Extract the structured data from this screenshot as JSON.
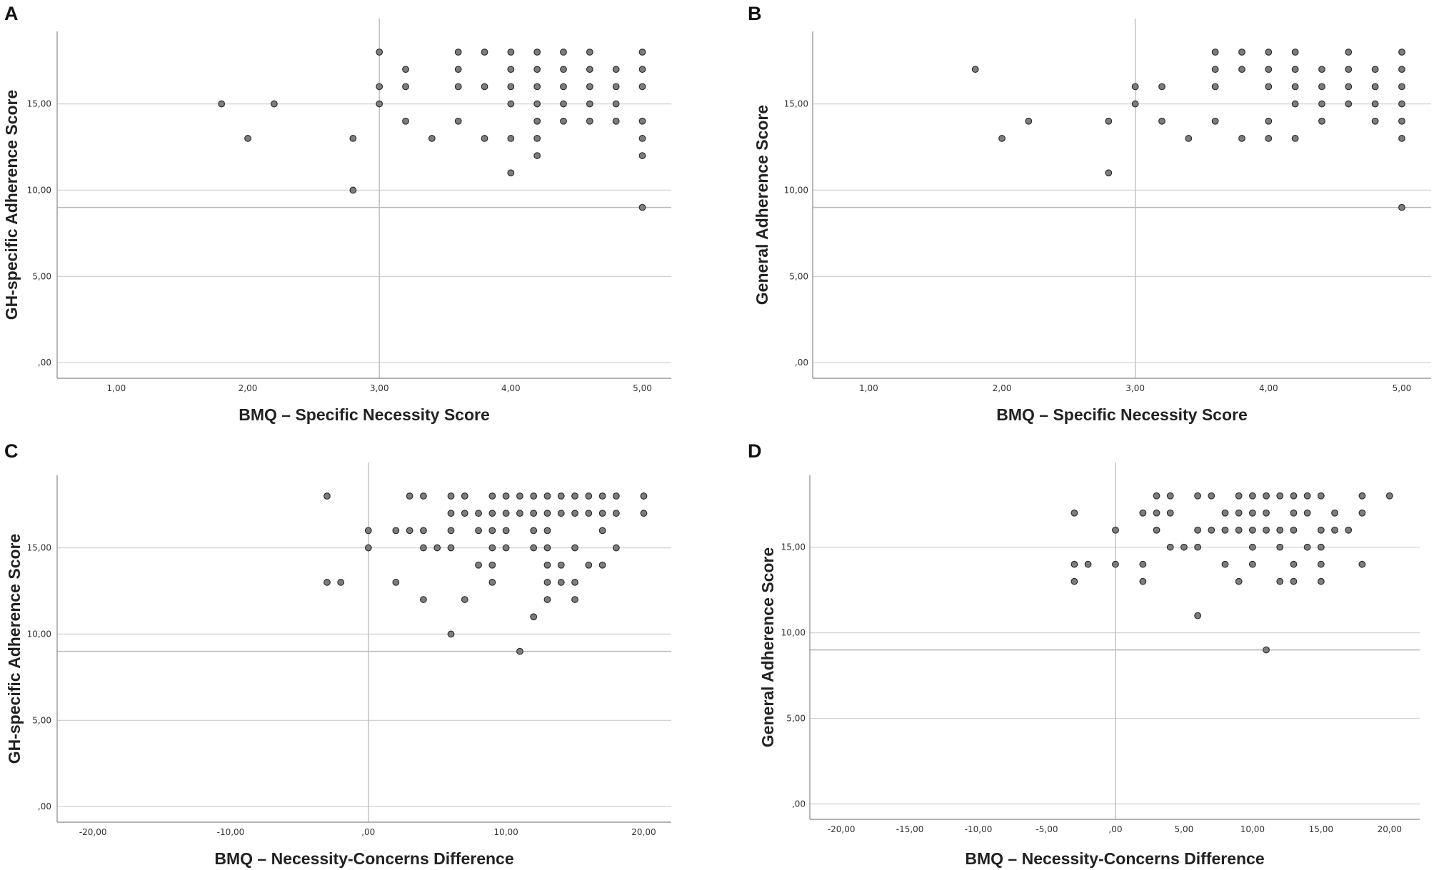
{
  "chart_data": [
    {
      "type": "scatter",
      "panel": "A",
      "xlabel": "BMQ – Specific Necessity Score",
      "ylabel": "GH-specific Adherence Score",
      "xlim": [
        0.55,
        5.22
      ],
      "ylim": [
        -0.9,
        19.2
      ],
      "xticks": [
        1,
        2,
        3,
        4,
        5
      ],
      "xtick_labels": [
        "1,00",
        "2,00",
        "3,00",
        "4,00",
        "5,00"
      ],
      "yticks": [
        0,
        5,
        10,
        15
      ],
      "ytick_labels": [
        ",00",
        "5,00",
        "10,00",
        "15,00"
      ],
      "gridlines_y": [
        0,
        5,
        9,
        10,
        15
      ],
      "ref_x": 3,
      "points": [
        [
          1.8,
          15
        ],
        [
          2.0,
          13
        ],
        [
          2.2,
          15
        ],
        [
          2.8,
          13
        ],
        [
          2.8,
          10
        ],
        [
          3.0,
          18
        ],
        [
          3.0,
          16
        ],
        [
          3.0,
          15
        ],
        [
          3.2,
          17
        ],
        [
          3.2,
          16
        ],
        [
          3.2,
          14
        ],
        [
          3.4,
          13
        ],
        [
          3.6,
          18
        ],
        [
          3.6,
          17
        ],
        [
          3.6,
          16
        ],
        [
          3.6,
          14
        ],
        [
          3.8,
          18
        ],
        [
          3.8,
          16
        ],
        [
          3.8,
          13
        ],
        [
          4.0,
          18
        ],
        [
          4.0,
          17
        ],
        [
          4.0,
          16
        ],
        [
          4.0,
          15
        ],
        [
          4.0,
          13
        ],
        [
          4.0,
          11
        ],
        [
          4.2,
          18
        ],
        [
          4.2,
          17
        ],
        [
          4.2,
          16
        ],
        [
          4.2,
          15
        ],
        [
          4.2,
          14
        ],
        [
          4.2,
          13
        ],
        [
          4.2,
          12
        ],
        [
          4.4,
          18
        ],
        [
          4.4,
          17
        ],
        [
          4.4,
          16
        ],
        [
          4.4,
          15
        ],
        [
          4.4,
          14
        ],
        [
          4.6,
          18
        ],
        [
          4.6,
          17
        ],
        [
          4.6,
          16
        ],
        [
          4.6,
          15
        ],
        [
          4.6,
          14
        ],
        [
          4.8,
          17
        ],
        [
          4.8,
          16
        ],
        [
          4.8,
          15
        ],
        [
          4.8,
          14
        ],
        [
          5.0,
          18
        ],
        [
          5.0,
          17
        ],
        [
          5.0,
          16
        ],
        [
          5.0,
          14
        ],
        [
          5.0,
          13
        ],
        [
          5.0,
          12
        ],
        [
          5.0,
          9
        ]
      ]
    },
    {
      "type": "scatter",
      "panel": "B",
      "xlabel": "BMQ – Specific Necessity Score",
      "ylabel": "General Adherence Score",
      "xlim": [
        0.58,
        5.22
      ],
      "ylim": [
        -0.9,
        19.2
      ],
      "xticks": [
        1,
        2,
        3,
        4,
        5
      ],
      "xtick_labels": [
        "1,00",
        "2,00",
        "3,00",
        "4,00",
        "5,00"
      ],
      "yticks": [
        0,
        5,
        10,
        15
      ],
      "ytick_labels": [
        ",00",
        "5,00",
        "10,00",
        "15,00"
      ],
      "gridlines_y": [
        0,
        5,
        9,
        10,
        15
      ],
      "ref_x": 3,
      "points": [
        [
          1.8,
          17
        ],
        [
          2.0,
          13
        ],
        [
          2.2,
          14
        ],
        [
          2.8,
          14
        ],
        [
          2.8,
          11
        ],
        [
          3.0,
          16
        ],
        [
          3.0,
          15
        ],
        [
          3.2,
          16
        ],
        [
          3.2,
          14
        ],
        [
          3.4,
          13
        ],
        [
          3.6,
          18
        ],
        [
          3.6,
          17
        ],
        [
          3.6,
          16
        ],
        [
          3.6,
          14
        ],
        [
          3.8,
          18
        ],
        [
          3.8,
          17
        ],
        [
          3.8,
          13
        ],
        [
          4.0,
          18
        ],
        [
          4.0,
          17
        ],
        [
          4.0,
          16
        ],
        [
          4.0,
          14
        ],
        [
          4.0,
          13
        ],
        [
          4.2,
          18
        ],
        [
          4.2,
          17
        ],
        [
          4.2,
          16
        ],
        [
          4.2,
          15
        ],
        [
          4.2,
          13
        ],
        [
          4.4,
          17
        ],
        [
          4.4,
          16
        ],
        [
          4.4,
          15
        ],
        [
          4.4,
          14
        ],
        [
          4.6,
          18
        ],
        [
          4.6,
          17
        ],
        [
          4.6,
          16
        ],
        [
          4.6,
          15
        ],
        [
          4.8,
          17
        ],
        [
          4.8,
          16
        ],
        [
          4.8,
          15
        ],
        [
          4.8,
          14
        ],
        [
          5.0,
          18
        ],
        [
          5.0,
          17
        ],
        [
          5.0,
          16
        ],
        [
          5.0,
          15
        ],
        [
          5.0,
          14
        ],
        [
          5.0,
          13
        ],
        [
          5.0,
          9
        ]
      ]
    },
    {
      "type": "scatter",
      "panel": "C",
      "xlabel": "BMQ – Necessity-Concerns Difference",
      "ylabel": "GH-specific Adherence Score",
      "xlim": [
        -22.6,
        22.0
      ],
      "ylim": [
        -0.9,
        19.2
      ],
      "xticks": [
        -20,
        -10,
        0,
        10,
        20
      ],
      "xtick_labels": [
        "-20,00",
        "-10,00",
        ",00",
        "10,00",
        "20,00"
      ],
      "yticks": [
        0,
        5,
        10,
        15
      ],
      "ytick_labels": [
        ",00",
        "5,00",
        "10,00",
        "15,00"
      ],
      "gridlines_y": [
        0,
        5,
        9,
        10,
        15
      ],
      "ref_x": 0,
      "points": [
        [
          -3,
          18
        ],
        [
          -3,
          13
        ],
        [
          -2,
          13
        ],
        [
          0,
          16
        ],
        [
          0,
          15
        ],
        [
          2,
          16
        ],
        [
          2,
          13
        ],
        [
          3,
          18
        ],
        [
          3,
          16
        ],
        [
          4,
          18
        ],
        [
          4,
          16
        ],
        [
          4,
          15
        ],
        [
          4,
          12
        ],
        [
          5,
          15
        ],
        [
          6,
          18
        ],
        [
          6,
          17
        ],
        [
          6,
          16
        ],
        [
          6,
          15
        ],
        [
          6,
          10
        ],
        [
          7,
          18
        ],
        [
          7,
          17
        ],
        [
          7,
          12
        ],
        [
          8,
          17
        ],
        [
          8,
          16
        ],
        [
          8,
          14
        ],
        [
          9,
          18
        ],
        [
          9,
          17
        ],
        [
          9,
          16
        ],
        [
          9,
          15
        ],
        [
          9,
          14
        ],
        [
          9,
          13
        ],
        [
          10,
          18
        ],
        [
          10,
          17
        ],
        [
          10,
          16
        ],
        [
          10,
          15
        ],
        [
          11,
          18
        ],
        [
          11,
          17
        ],
        [
          11,
          9
        ],
        [
          12,
          18
        ],
        [
          12,
          17
        ],
        [
          12,
          16
        ],
        [
          12,
          15
        ],
        [
          12,
          11
        ],
        [
          13,
          18
        ],
        [
          13,
          17
        ],
        [
          13,
          16
        ],
        [
          13,
          15
        ],
        [
          13,
          14
        ],
        [
          13,
          13
        ],
        [
          13,
          12
        ],
        [
          14,
          18
        ],
        [
          14,
          17
        ],
        [
          14,
          14
        ],
        [
          14,
          13
        ],
        [
          15,
          18
        ],
        [
          15,
          17
        ],
        [
          15,
          15
        ],
        [
          15,
          13
        ],
        [
          15,
          12
        ],
        [
          16,
          18
        ],
        [
          16,
          17
        ],
        [
          16,
          14
        ],
        [
          17,
          18
        ],
        [
          17,
          17
        ],
        [
          17,
          16
        ],
        [
          17,
          14
        ],
        [
          18,
          18
        ],
        [
          18,
          17
        ],
        [
          18,
          15
        ],
        [
          20,
          18
        ],
        [
          20,
          17
        ]
      ]
    },
    {
      "type": "scatter",
      "panel": "D",
      "xlabel": "BMQ – Necessity-Concerns Difference",
      "ylabel": "General Adherence Score",
      "xlim": [
        -22.3,
        22.2
      ],
      "ylim": [
        -0.9,
        19.2
      ],
      "xticks": [
        -20,
        -15,
        -10,
        -5,
        0,
        5,
        10,
        15,
        20
      ],
      "xtick_labels": [
        "-20,00",
        "-15,00",
        "-10,00",
        "-5,00",
        ",00",
        "5,00",
        "10,00",
        "15,00",
        "20,00"
      ],
      "yticks": [
        0,
        5,
        10,
        15
      ],
      "ytick_labels": [
        ",00",
        "5,00",
        "10,00",
        "15,00"
      ],
      "gridlines_y": [
        0,
        5,
        9,
        10,
        15
      ],
      "ref_x": 0,
      "points": [
        [
          -3,
          17
        ],
        [
          -3,
          14
        ],
        [
          -3,
          13
        ],
        [
          -2,
          14
        ],
        [
          0,
          16
        ],
        [
          0,
          14
        ],
        [
          2,
          17
        ],
        [
          2,
          14
        ],
        [
          2,
          13
        ],
        [
          3,
          18
        ],
        [
          3,
          17
        ],
        [
          3,
          16
        ],
        [
          4,
          18
        ],
        [
          4,
          17
        ],
        [
          4,
          15
        ],
        [
          5,
          15
        ],
        [
          6,
          18
        ],
        [
          6,
          16
        ],
        [
          6,
          15
        ],
        [
          6,
          11
        ],
        [
          7,
          18
        ],
        [
          7,
          16
        ],
        [
          8,
          17
        ],
        [
          8,
          16
        ],
        [
          8,
          14
        ],
        [
          9,
          18
        ],
        [
          9,
          17
        ],
        [
          9,
          16
        ],
        [
          9,
          13
        ],
        [
          10,
          18
        ],
        [
          10,
          17
        ],
        [
          10,
          16
        ],
        [
          10,
          15
        ],
        [
          10,
          14
        ],
        [
          11,
          18
        ],
        [
          11,
          17
        ],
        [
          11,
          16
        ],
        [
          11,
          9
        ],
        [
          12,
          18
        ],
        [
          12,
          16
        ],
        [
          12,
          15
        ],
        [
          12,
          13
        ],
        [
          13,
          18
        ],
        [
          13,
          17
        ],
        [
          13,
          16
        ],
        [
          13,
          14
        ],
        [
          13,
          13
        ],
        [
          14,
          18
        ],
        [
          14,
          17
        ],
        [
          14,
          15
        ],
        [
          15,
          18
        ],
        [
          15,
          16
        ],
        [
          15,
          15
        ],
        [
          15,
          14
        ],
        [
          15,
          13
        ],
        [
          16,
          17
        ],
        [
          16,
          16
        ],
        [
          17,
          16
        ],
        [
          18,
          18
        ],
        [
          18,
          17
        ],
        [
          18,
          14
        ],
        [
          20,
          18
        ]
      ]
    }
  ]
}
